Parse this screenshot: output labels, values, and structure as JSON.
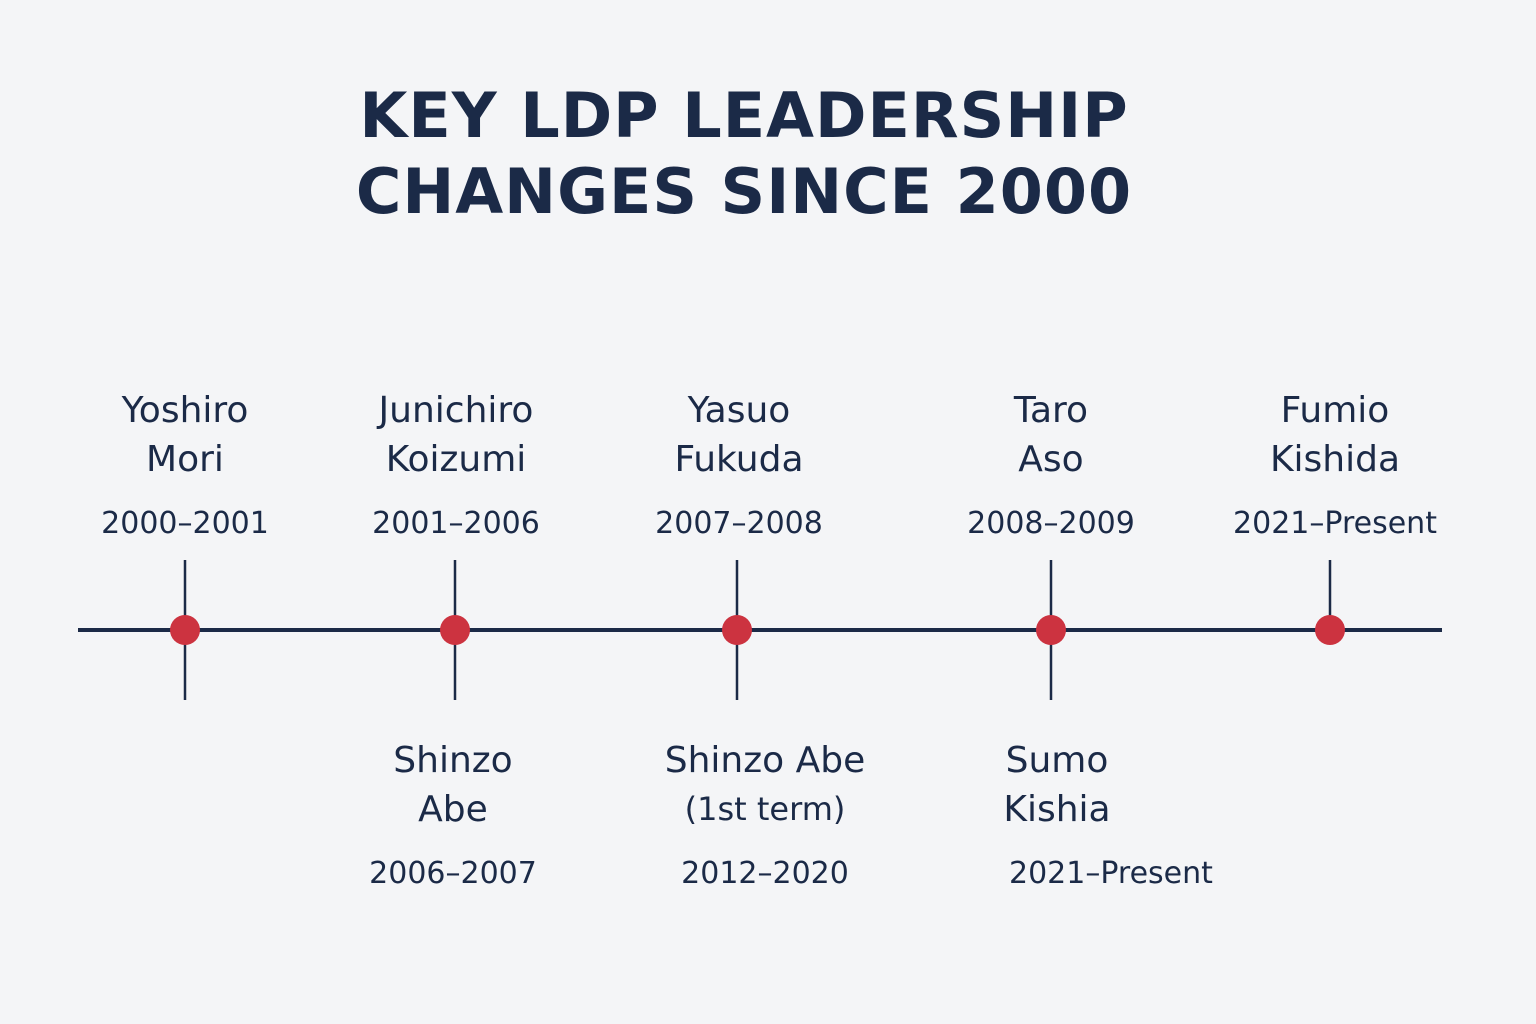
{
  "title": {
    "line1": "KEY LDP LEADERSHIP",
    "line2": "CHANGES SINCE 2000"
  },
  "colors": {
    "text": "#1b2a47",
    "axis": "#1b2a47",
    "marker": "#cc3340",
    "background": "#f4f5f7"
  },
  "top_events": [
    {
      "line1": "Yoshiro",
      "line2": "Mori",
      "years": "2000–2001"
    },
    {
      "line1": "Junichiro",
      "line2": "Koizumi",
      "years": "2001–2006"
    },
    {
      "line1": "Yasuo",
      "line2": "Fukuda",
      "years": "2007–2008"
    },
    {
      "line1": "Taro",
      "line2": "Aso",
      "years": "2008–2009"
    },
    {
      "line1": "Fumio",
      "line2": "Kishida",
      "years": "2021–Present"
    }
  ],
  "bottom_events": [
    {
      "line1": "Shinzo",
      "line2": "Abe",
      "years": "2006–2007"
    },
    {
      "line1": "Shinzo Abe",
      "line2": "(1st term)",
      "years": "2012–2020"
    },
    {
      "line1": "Sumo",
      "line2": "Kishia",
      "years": "2021–Present"
    }
  ]
}
